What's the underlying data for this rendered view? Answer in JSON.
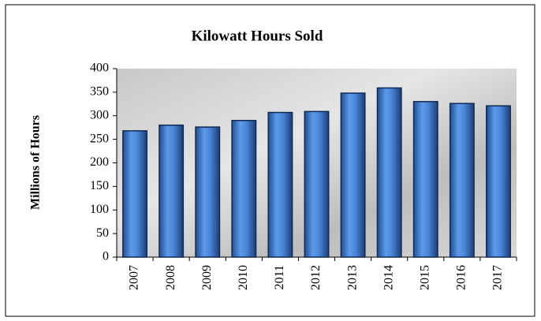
{
  "chart_data": {
    "type": "bar",
    "title": "Kilowatt Hours Sold",
    "y_label": "Millions of Hours",
    "categories": [
      "2007",
      "2008",
      "2009",
      "2010",
      "2011",
      "2012",
      "2013",
      "2014",
      "2015",
      "2016",
      "2017"
    ],
    "values": [
      268,
      280,
      276,
      290,
      307,
      309,
      348,
      359,
      330,
      326,
      321
    ],
    "color": "#4a86d8",
    "ylim": [
      0,
      400
    ],
    "yticks": [
      0,
      50,
      100,
      150,
      200,
      250,
      300,
      350,
      400
    ],
    "grid": false
  }
}
